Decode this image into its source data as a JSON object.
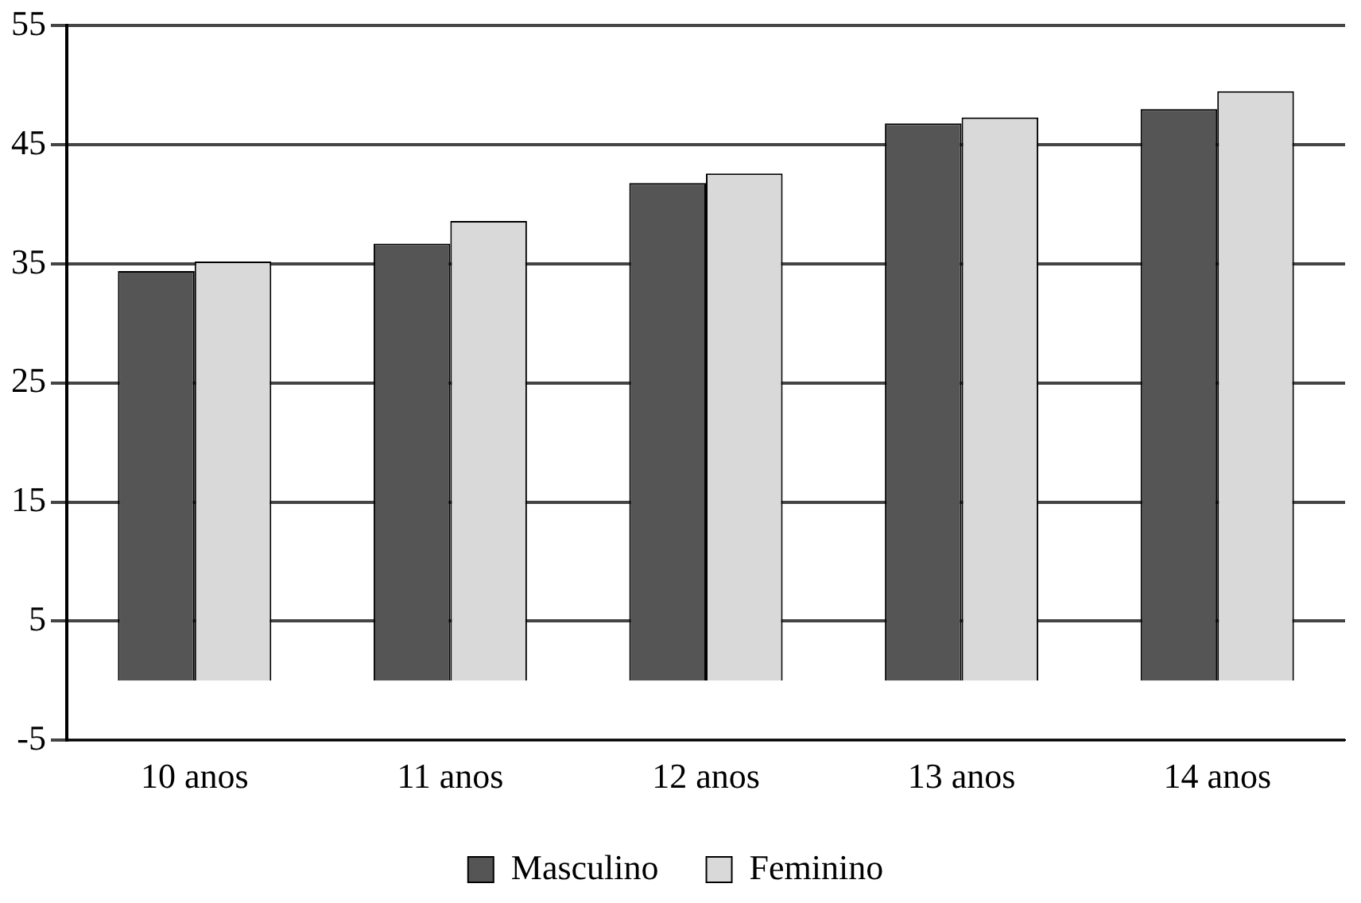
{
  "chart_data": {
    "type": "bar",
    "categories": [
      "10 anos",
      "11 anos",
      "12 anos",
      "13 anos",
      "14 anos"
    ],
    "series": [
      {
        "name": "Masculino",
        "color": "#555555",
        "values": [
          34.4,
          36.7,
          41.8,
          46.8,
          48.0
        ]
      },
      {
        "name": "Feminino",
        "color": "#d9d9d9",
        "values": [
          35.2,
          38.6,
          42.6,
          47.3,
          49.5
        ]
      }
    ],
    "ylim": [
      -5,
      55
    ],
    "yticks": [
      -5,
      5,
      15,
      25,
      35,
      45,
      55
    ],
    "grid": "y",
    "legend": "bottom"
  }
}
